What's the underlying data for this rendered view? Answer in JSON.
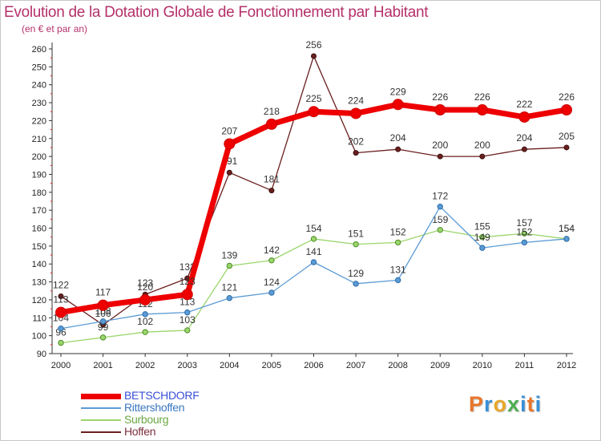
{
  "chart_data": {
    "type": "line",
    "title": "Evolution de la Dotation Globale de Fonctionnement par Habitant",
    "subtitle": "(en € et par an)",
    "xlabel": "",
    "ylabel": "",
    "x": [
      "2000",
      "2001",
      "2002",
      "2003",
      "2004",
      "2005",
      "2006",
      "2007",
      "2008",
      "2009",
      "2010",
      "2011",
      "2012"
    ],
    "ylim": [
      90,
      260
    ],
    "yticks": [
      "90",
      "100",
      "110",
      "120",
      "130",
      "140",
      "150",
      "160",
      "170",
      "180",
      "190",
      "200",
      "210",
      "220",
      "230",
      "240",
      "250",
      "260"
    ],
    "grid": false,
    "legend_position": "bottom-left",
    "series": [
      {
        "name": "Hoffen",
        "color": "#6b1f1f",
        "values": [
          122,
          106,
          123,
          132,
          191,
          181,
          256,
          202,
          204,
          200,
          200,
          204,
          205
        ],
        "labels": [
          "122",
          "106",
          "123",
          "132",
          "191",
          "181",
          "256",
          "202",
          "204",
          "200",
          "200",
          "204",
          "205"
        ]
      },
      {
        "name": "Surbourg",
        "color": "#9bd66b",
        "values": [
          96,
          99,
          102,
          103,
          139,
          142,
          154,
          151,
          152,
          159,
          155,
          157,
          154
        ],
        "labels": [
          "96",
          "99",
          "102",
          "103",
          "139",
          "142",
          "154",
          "151",
          "152",
          "159",
          "155",
          "157",
          "154"
        ]
      },
      {
        "name": "Rittershoffen",
        "color": "#5b9bd5",
        "values": [
          104,
          108,
          112,
          113,
          121,
          124,
          141,
          129,
          131,
          172,
          149,
          152,
          154
        ],
        "labels": [
          "104",
          "108",
          "112",
          "113",
          "121",
          "124",
          "141",
          "129",
          "131",
          "172",
          "149",
          "152",
          "154"
        ]
      },
      {
        "name": "BETSCHDORF",
        "color": "#ee0000",
        "values": [
          113,
          117,
          120,
          123,
          207,
          218,
          225,
          224,
          229,
          226,
          226,
          222,
          226
        ],
        "labels": [
          "113",
          "117",
          "120",
          "123",
          "207",
          "218",
          "225",
          "224",
          "229",
          "226",
          "226",
          "222",
          "226"
        ]
      }
    ],
    "legend": [
      "BETSCHDORF",
      "Rittershoffen",
      "Surbourg",
      "Hoffen"
    ]
  },
  "brand": {
    "text": "Proxiti",
    "letters": [
      "P",
      "r",
      "o",
      "x",
      "i",
      "t",
      "i"
    ],
    "letter_colors": [
      "#e8762b",
      "#3a8fd6",
      "#e8a82b",
      "#4caf50",
      "#3a8fd6",
      "#e8762b",
      "#3a8fd6"
    ]
  }
}
